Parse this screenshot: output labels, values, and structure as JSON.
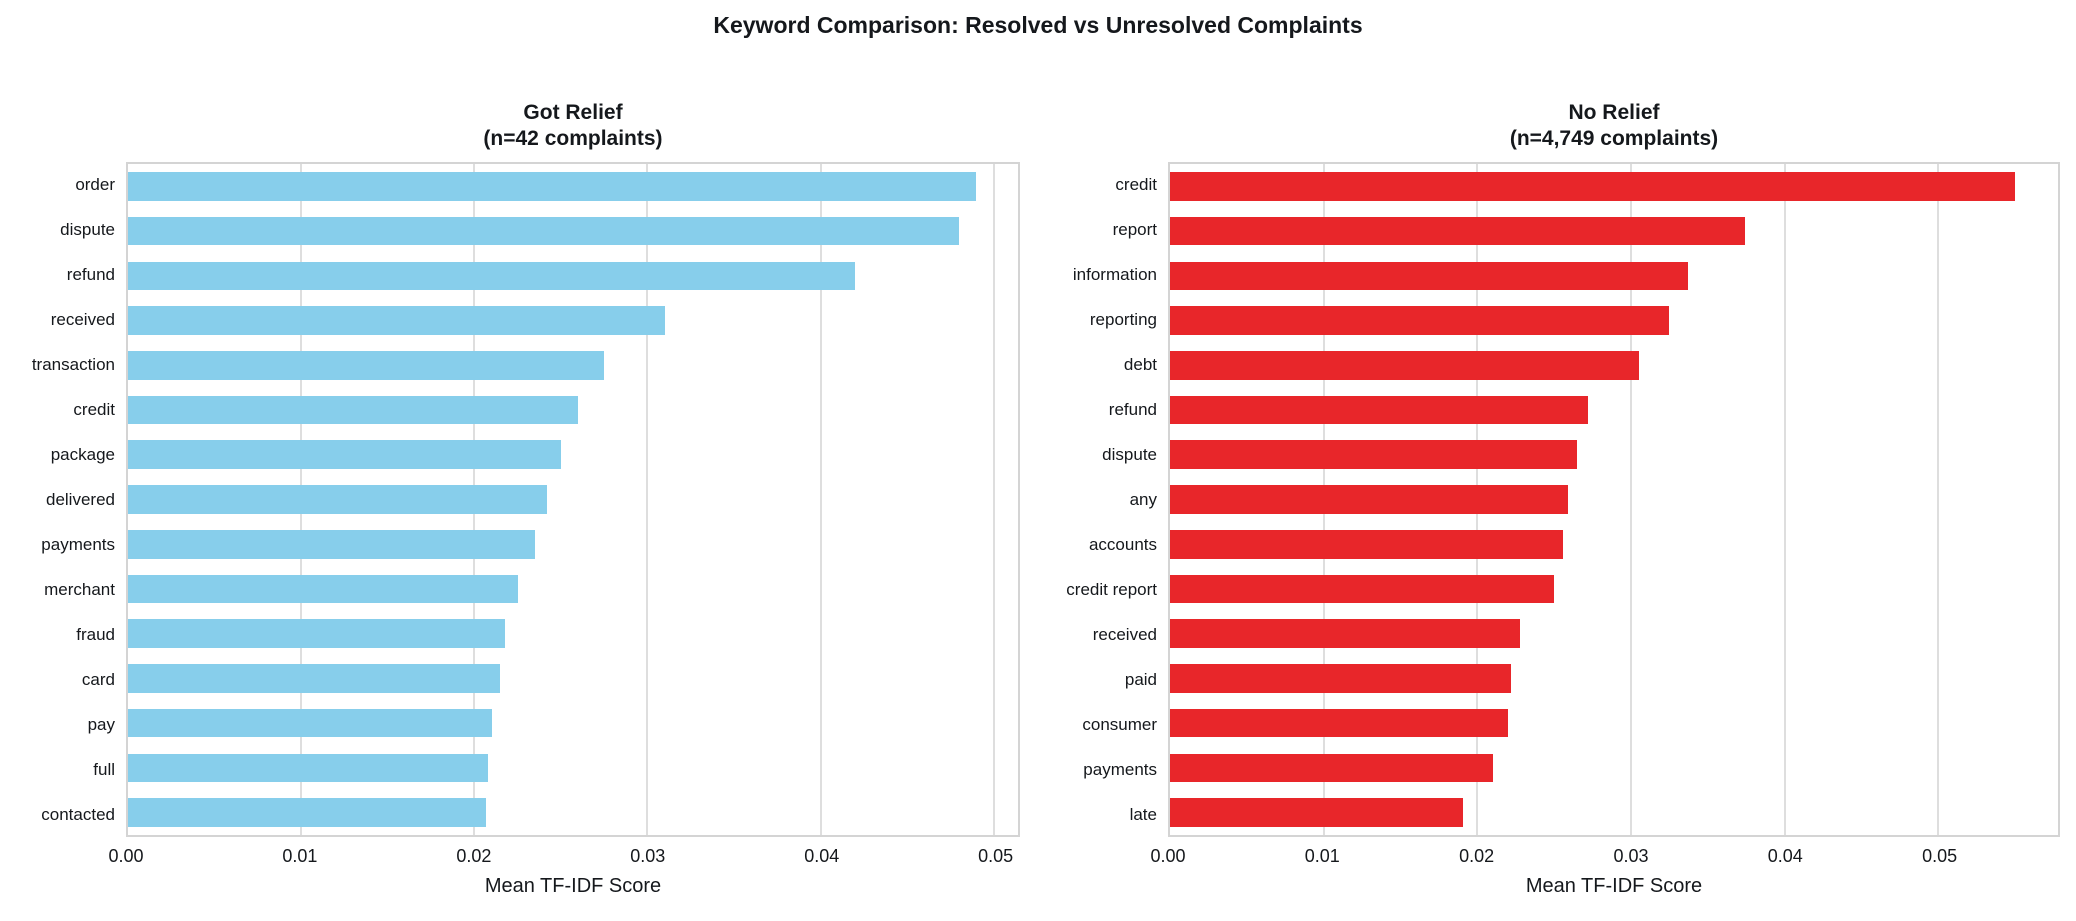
{
  "figure_title": "Keyword Comparison: Resolved vs Unresolved Complaints",
  "chart_data": [
    {
      "type": "bar",
      "orientation": "horizontal",
      "title": "Got Relief",
      "subtitle": "(n=42 complaints)",
      "bar_color": "#87CEEB",
      "categories": [
        "order",
        "dispute",
        "refund",
        "received",
        "transaction",
        "credit",
        "package",
        "delivered",
        "payments",
        "merchant",
        "fraud",
        "card",
        "pay",
        "full",
        "contacted"
      ],
      "values": [
        0.049,
        0.048,
        0.042,
        0.031,
        0.0275,
        0.026,
        0.025,
        0.0242,
        0.0235,
        0.0225,
        0.0218,
        0.0215,
        0.021,
        0.0208,
        0.0207
      ],
      "xlabel": "Mean TF-IDF Score",
      "xlim": [
        0,
        0.0514
      ],
      "xticks": [
        "0.00",
        "0.01",
        "0.02",
        "0.03",
        "0.04",
        "0.05"
      ],
      "xtick_values": [
        0,
        0.01,
        0.02,
        0.03,
        0.04,
        0.05
      ],
      "grid": "vertical",
      "legend": "none"
    },
    {
      "type": "bar",
      "orientation": "horizontal",
      "title": "No Relief",
      "subtitle": "(n=4,749 complaints)",
      "bar_color": "#e8262a",
      "categories": [
        "credit",
        "report",
        "information",
        "reporting",
        "debt",
        "refund",
        "dispute",
        "any",
        "accounts",
        "credit report",
        "received",
        "paid",
        "consumer",
        "payments",
        "late"
      ],
      "values": [
        0.055,
        0.0374,
        0.0337,
        0.0325,
        0.0305,
        0.0272,
        0.0265,
        0.0259,
        0.0256,
        0.025,
        0.0228,
        0.0222,
        0.022,
        0.021,
        0.0191
      ],
      "xlabel": "Mean TF-IDF Score",
      "xlim": [
        0,
        0.0578
      ],
      "xticks": [
        "0.00",
        "0.01",
        "0.02",
        "0.03",
        "0.04",
        "0.05"
      ],
      "xtick_values": [
        0,
        0.01,
        0.02,
        0.03,
        0.04,
        0.05
      ],
      "grid": "vertical",
      "legend": "none"
    }
  ]
}
